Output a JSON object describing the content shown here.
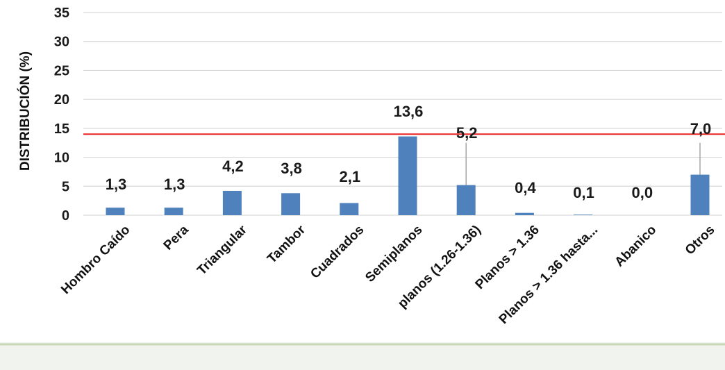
{
  "chart_data": {
    "type": "bar",
    "title": "",
    "xlabel": "",
    "ylabel": "DISTRIBUCIÓN (%)",
    "ylim": [
      0,
      35
    ],
    "yticks": [
      0,
      5,
      10,
      15,
      20,
      25,
      30,
      35
    ],
    "grid": true,
    "legend": "none",
    "categories": [
      "Hombro Caído",
      "Pera",
      "Triangular",
      "Tambor",
      "Cuadrados",
      "Semiplanos",
      "planos (1.26-1.36)",
      "Planos > 1.36",
      "Planos > 1.36 hasta...",
      "Abanico",
      "Otros"
    ],
    "values": [
      1.3,
      1.3,
      4.2,
      3.8,
      2.1,
      13.6,
      5.2,
      0.4,
      0.1,
      0.0,
      7.0
    ],
    "data_labels": [
      "1,3",
      "1,3",
      "4,2",
      "3,8",
      "2,1",
      "13,6",
      "5,2",
      "0,4",
      "0,1",
      "0,0",
      "7,0"
    ],
    "reference_line": {
      "value": 14,
      "color": "#e8201f"
    },
    "error_bars_to": [
      null,
      null,
      null,
      null,
      null,
      null,
      12.5,
      null,
      null,
      null,
      12.5
    ],
    "colors": {
      "bar": "#4f81bd",
      "grid": "#d9d9d9",
      "error": "#a6a6a6"
    }
  }
}
